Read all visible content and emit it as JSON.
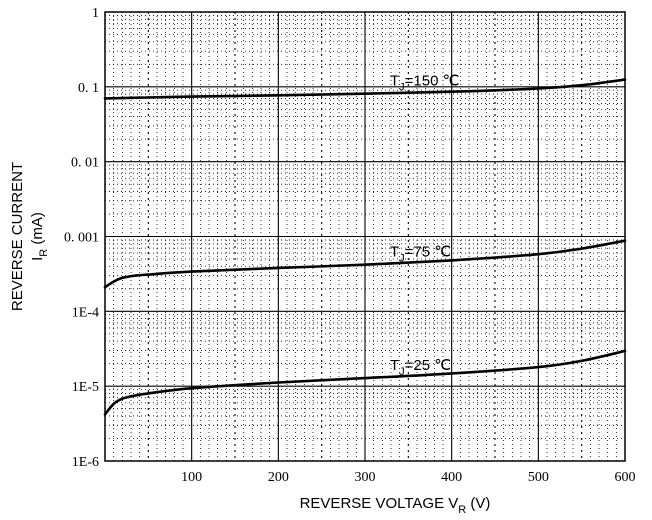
{
  "chart_data": {
    "type": "line",
    "x_scale": "linear",
    "y_scale": "log",
    "xlim": [
      0,
      600
    ],
    "ylim": [
      1e-06,
      1
    ],
    "grid": true,
    "x_ticks": [
      {
        "value": 100,
        "label": "100"
      },
      {
        "value": 200,
        "label": "200"
      },
      {
        "value": 300,
        "label": "300"
      },
      {
        "value": 400,
        "label": "400"
      },
      {
        "value": 500,
        "label": "500"
      },
      {
        "value": 600,
        "label": "600"
      }
    ],
    "y_ticks": [
      {
        "value": 1,
        "label": "1"
      },
      {
        "value": 0.1,
        "label": "0. 1"
      },
      {
        "value": 0.01,
        "label": "0. 01"
      },
      {
        "value": 0.001,
        "label": "0. 001"
      },
      {
        "value": 0.0001,
        "label": "1E-4"
      },
      {
        "value": 1e-05,
        "label": "1E-5"
      },
      {
        "value": 1e-06,
        "label": "1E-6"
      }
    ],
    "xlabel": {
      "main": "REVERSE VOLTAGE",
      "symbol": "V",
      "sub": "R",
      "unit": "(V)"
    },
    "ylabel": {
      "line1": "REVERSE CURRENT",
      "symbol": "I",
      "sub": "R",
      "unit": "(mA)"
    },
    "series": [
      {
        "label": {
          "prefix": "T",
          "sub": "J",
          "text": "=150 ℃"
        },
        "x": [
          0,
          50,
          100,
          200,
          300,
          400,
          500,
          550,
          600
        ],
        "y": [
          0.07,
          0.072,
          0.074,
          0.077,
          0.081,
          0.086,
          0.095,
          0.105,
          0.125
        ]
      },
      {
        "label": {
          "prefix": "T",
          "sub": "J",
          "text": "=75 ℃"
        },
        "x": [
          0,
          10,
          20,
          35,
          50,
          100,
          200,
          300,
          400,
          500,
          550,
          600
        ],
        "y": [
          0.00021,
          0.00025,
          0.00028,
          0.0003,
          0.00031,
          0.00034,
          0.00038,
          0.00042,
          0.00048,
          0.00058,
          0.00069,
          0.00088
        ]
      },
      {
        "label": {
          "prefix": "T",
          "sub": "J",
          "text": "=25 ℃"
        },
        "x": [
          0,
          10,
          20,
          35,
          50,
          100,
          200,
          300,
          400,
          500,
          550,
          600
        ],
        "y": [
          4.2e-06,
          5.8e-06,
          6.8e-06,
          7.5e-06,
          8e-06,
          9.4e-06,
          1.12e-05,
          1.28e-05,
          1.48e-05,
          1.8e-05,
          2.18e-05,
          2.95e-05
        ]
      }
    ]
  }
}
